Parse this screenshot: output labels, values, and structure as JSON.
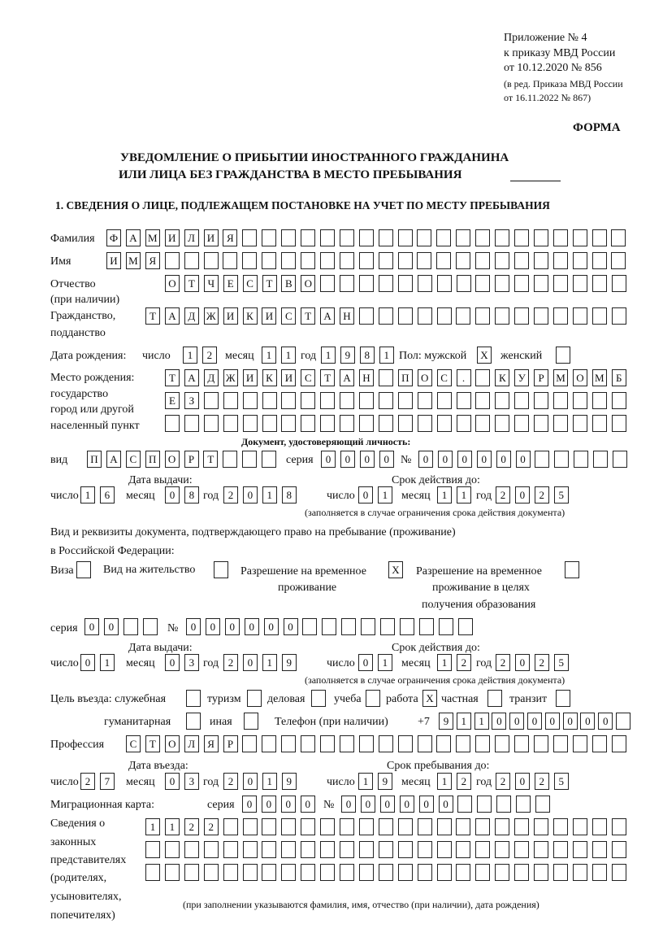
{
  "header": {
    "appendix": [
      "Приложение № 4",
      "к приказу МВД России",
      "от 10.12.2020 № 856"
    ],
    "revision": [
      "(в ред. Приказа МВД России",
      "от 16.11.2022 № 867)"
    ],
    "form_label": "ФОРМА",
    "title_line1": "УВЕДОМЛЕНИЕ О ПРИБЫТИИ ИНОСТРАННОГО ГРАЖДАНИНА",
    "title_line2": "ИЛИ ЛИЦА БЕЗ ГРАЖДАНСТВА В МЕСТО ПРЕБЫВАНИЯ",
    "section1": "1. СВЕДЕНИЯ О ЛИЦЕ, ПОДЛЕЖАЩЕМ ПОСТАНОВКЕ НА УЧЕТ ПО МЕСТУ ПРЕБЫВАНИЯ"
  },
  "labels": {
    "surname": "Фамилия",
    "name": "Имя",
    "patronymic": "Отчество",
    "patronymic_note": "(при наличии)",
    "citizenship": "Гражданство,",
    "citizenship2": "подданство",
    "birth_date": "Дата рождения:",
    "day": "число",
    "month": "месяц",
    "year": "год",
    "sex": "Пол: мужской",
    "female": "женский",
    "birth_place": [
      "Место рождения:",
      "государство",
      "город или другой",
      "населенный пункт"
    ],
    "id_doc": "Документ, удостоверяющий личность:",
    "kind": "вид",
    "series": "серия",
    "number": "№",
    "issue_date": "Дата выдачи:",
    "valid_until": "Срок действия до:",
    "validity_note": "(заполняется в случае ограничения срока действия документа)",
    "permit_doc": "Вид и реквизиты документа, подтверждающего право на пребывание (проживание)",
    "permit_doc2": "в Российской Федерации:",
    "visa": "Виза",
    "residence": "Вид на жительство",
    "temp_res": [
      "Разрешение на временное",
      "проживание"
    ],
    "temp_res_edu": [
      "Разрешение на временное",
      "проживание в целях",
      "получения образования"
    ],
    "purpose": "Цель въезда: служебная",
    "tourism": "туризм",
    "business": "деловая",
    "study": "учеба",
    "work": "работа",
    "private": "частная",
    "transit": "транзит",
    "humanitarian": "гуманитарная",
    "other": "иная",
    "phone": "Телефон (при наличии)",
    "phone_prefix": "+7",
    "profession": "Профессия",
    "entry_date": "Дата въезда:",
    "stay_until": "Срок пребывания до:",
    "migration_card": "Миграционная карта:",
    "representatives": [
      "Сведения о",
      "законных",
      "представителях",
      "(родителях,",
      "усыновителях,",
      "попечителях)"
    ],
    "representatives_note": "(при заполнении указываются фамилия, имя, отчество (при наличии), дата рождения)"
  },
  "values": {
    "surname": [
      "Ф",
      "А",
      "М",
      "И",
      "Л",
      "И",
      "Я",
      "",
      "",
      "",
      "",
      "",
      "",
      "",
      "",
      "",
      "",
      "",
      "",
      "",
      "",
      "",
      "",
      "",
      "",
      "",
      ""
    ],
    "name": [
      "И",
      "М",
      "Я",
      "",
      "",
      "",
      "",
      "",
      "",
      "",
      "",
      "",
      "",
      "",
      "",
      "",
      "",
      "",
      "",
      "",
      "",
      "",
      "",
      "",
      "",
      "",
      ""
    ],
    "patronymic": [
      "О",
      "Т",
      "Ч",
      "Е",
      "С",
      "Т",
      "В",
      "О",
      "",
      "",
      "",
      "",
      "",
      "",
      "",
      "",
      "",
      "",
      "",
      "",
      "",
      "",
      "",
      ""
    ],
    "citizenship": [
      "Т",
      "А",
      "Д",
      "Ж",
      "И",
      "К",
      "И",
      "С",
      "Т",
      "А",
      "Н",
      "",
      "",
      "",
      "",
      "",
      "",
      "",
      "",
      "",
      "",
      "",
      "",
      "",
      ""
    ],
    "birth_day": [
      "1",
      "2"
    ],
    "birth_month": [
      "1",
      "1"
    ],
    "birth_year": [
      "1",
      "9",
      "8",
      "1"
    ],
    "sex_male": "X",
    "sex_female": "",
    "birth_place_1": [
      "Т",
      "А",
      "Д",
      "Ж",
      "И",
      "К",
      "И",
      "С",
      "Т",
      "А",
      "Н",
      "",
      "П",
      "О",
      "С",
      ".",
      "",
      "К",
      "У",
      "Р",
      "М",
      "О",
      "М",
      "Б"
    ],
    "birth_place_2": [
      "Е",
      "З",
      "",
      "",
      "",
      "",
      "",
      "",
      "",
      "",
      "",
      "",
      "",
      "",
      "",
      "",
      "",
      "",
      "",
      "",
      "",
      "",
      "",
      ""
    ],
    "birth_place_3": [
      "",
      "",
      "",
      "",
      "",
      "",
      "",
      "",
      "",
      "",
      "",
      "",
      "",
      "",
      "",
      "",
      "",
      "",
      "",
      "",
      "",
      "",
      "",
      ""
    ],
    "id_kind": [
      "П",
      "А",
      "С",
      "П",
      "О",
      "Р",
      "Т",
      "",
      "",
      ""
    ],
    "id_series": [
      "0",
      "0",
      "0",
      "0"
    ],
    "id_number": [
      "0",
      "0",
      "0",
      "0",
      "0",
      "0",
      "",
      "",
      "",
      "",
      ""
    ],
    "id_issue": {
      "day": [
        "1",
        "6"
      ],
      "month": [
        "0",
        "8"
      ],
      "year": [
        "2",
        "0",
        "1",
        "8"
      ]
    },
    "id_valid": {
      "day": [
        "0",
        "1"
      ],
      "month": [
        "1",
        "1"
      ],
      "year": [
        "2",
        "0",
        "2",
        "5"
      ]
    },
    "visa": "",
    "residence": "",
    "temp_res": "X",
    "temp_res_edu": "",
    "permit_series": [
      "0",
      "0",
      "",
      ""
    ],
    "permit_number": [
      "0",
      "0",
      "0",
      "0",
      "0",
      "0",
      "",
      "",
      "",
      "",
      "",
      "",
      "",
      "",
      ""
    ],
    "permit_issue": {
      "day": [
        "0",
        "1"
      ],
      "month": [
        "0",
        "3"
      ],
      "year": [
        "2",
        "0",
        "1",
        "9"
      ]
    },
    "permit_valid": {
      "day": [
        "0",
        "1"
      ],
      "month": [
        "1",
        "2"
      ],
      "year": [
        "2",
        "0",
        "2",
        "5"
      ]
    },
    "purpose": {
      "official": "",
      "tourism": "",
      "business": "",
      "study": "",
      "work": "X",
      "private": "",
      "transit": "",
      "humanitarian": "",
      "other": ""
    },
    "phone": [
      "9",
      "1",
      "1",
      "0",
      "0",
      "0",
      "0",
      "0",
      "0",
      "0",
      ""
    ],
    "profession": [
      "С",
      "Т",
      "О",
      "Л",
      "Я",
      "Р",
      "",
      "",
      "",
      "",
      "",
      "",
      "",
      "",
      "",
      "",
      "",
      "",
      "",
      "",
      "",
      "",
      "",
      "",
      "",
      ""
    ],
    "entry": {
      "day": [
        "2",
        "7"
      ],
      "month": [
        "0",
        "3"
      ],
      "year": [
        "2",
        "0",
        "1",
        "9"
      ]
    },
    "stay": {
      "day": [
        "1",
        "9"
      ],
      "month": [
        "1",
        "2"
      ],
      "year": [
        "2",
        "0",
        "2",
        "5"
      ]
    },
    "mig_series": [
      "0",
      "0",
      "0",
      "0"
    ],
    "mig_number": [
      "0",
      "0",
      "0",
      "0",
      "0",
      "0",
      "",
      "",
      "",
      "",
      ""
    ],
    "rep_1": [
      "1",
      "1",
      "2",
      "2",
      "",
      "",
      "",
      "",
      "",
      "",
      "",
      "",
      "",
      "",
      "",
      "",
      "",
      "",
      "",
      "",
      "",
      "",
      "",
      "",
      ""
    ],
    "rep_2": [
      "",
      "",
      "",
      "",
      "",
      "",
      "",
      "",
      "",
      "",
      "",
      "",
      "",
      "",
      "",
      "",
      "",
      "",
      "",
      "",
      "",
      "",
      "",
      "",
      ""
    ],
    "rep_3": [
      "",
      "",
      "",
      "",
      "",
      "",
      "",
      "",
      "",
      "",
      "",
      "",
      "",
      "",
      "",
      "",
      "",
      "",
      "",
      "",
      "",
      "",
      "",
      "",
      ""
    ]
  }
}
